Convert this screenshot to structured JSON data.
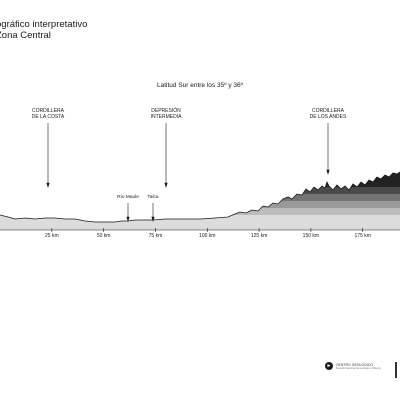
{
  "title": {
    "line1": "ográfico interpretativo",
    "line2": "Zona Central"
  },
  "subtitle": "Latitud Sur entre los 35º y 36º",
  "annotations": {
    "cordillera_costa": [
      "CORDILLERA",
      "DE LA COSTA"
    ],
    "depresion": [
      "DEPRESIÓN",
      "INTERMEDIA"
    ],
    "cordillera_andes": [
      "CORDILLERA",
      "DE LOS ANDES"
    ],
    "rio_maule": "Río Maule",
    "talca": "Talca"
  },
  "chart_data": {
    "type": "area",
    "x_unit": "km",
    "ticks": [
      "25 km",
      "50 km",
      "75 km",
      "100 km",
      "125 km",
      "150 km",
      "175 km"
    ],
    "tick_values": [
      25,
      50,
      75,
      100,
      125,
      150,
      175
    ],
    "xlim": [
      0,
      193
    ],
    "elevation_bands": [
      "#dcdcdc",
      "#bdbdbd",
      "#9a9a9a",
      "#747474",
      "#4a4a4a",
      "#222222"
    ]
  },
  "footer": {
    "logo_mark": "►",
    "logo_text": "CENTRO GEOLÓGICO",
    "logo_sub": "Servicio Nacional de Geología y Minería"
  },
  "colors": {
    "ink": "#1a1a1a",
    "grid": "#9a9a9a"
  }
}
